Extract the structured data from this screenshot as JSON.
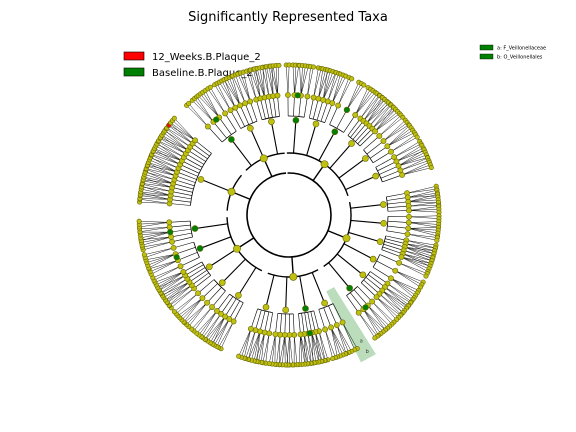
{
  "title": "Significantly Represented Taxa",
  "legend": [
    {
      "label": "12_Weeks.B.Plaque_2",
      "color": "#ff0000"
    },
    {
      "label": "Baseline.B.Plaque_2",
      "color": "#008000"
    }
  ],
  "clade_legend": [
    {
      "label": "a: F_Veillonellaceae",
      "color": "#008000"
    },
    {
      "label": "b: O_Veillonellales",
      "color": "#008000"
    }
  ],
  "clade_markers": [
    "a",
    "b"
  ],
  "colors": {
    "default_node": "#c0c010",
    "enriched_baseline": "#008000",
    "enriched_12weeks": "#ff0000",
    "highlight_fill": "#6ab46a"
  },
  "tree": {
    "levels": 6,
    "groups": [
      {
        "start": -92,
        "end": -18,
        "subclades": [
          4,
          5,
          3,
          6,
          4,
          5
        ],
        "green": [
          0,
          2
        ],
        "red": []
      },
      {
        "start": -12,
        "end": 56,
        "subclades": [
          5,
          4,
          6,
          3,
          5,
          4
        ],
        "green": [
          5,
          6
        ],
        "red": []
      },
      {
        "start": 62,
        "end": 110,
        "subclades": [
          4,
          6,
          5,
          5
        ],
        "green": [
          1
        ],
        "red": []
      },
      {
        "start": 116,
        "end": 178,
        "subclades": [
          5,
          4,
          6,
          4,
          5
        ],
        "green": [
          3,
          4
        ],
        "red": []
      },
      {
        "start": 184,
        "end": 220,
        "subclades": [
          18
        ],
        "green": [],
        "red": [
          17
        ]
      },
      {
        "start": 226,
        "end": 266,
        "subclades": [
          4,
          5,
          6
        ],
        "green": [
          0
        ],
        "red": []
      }
    ]
  }
}
